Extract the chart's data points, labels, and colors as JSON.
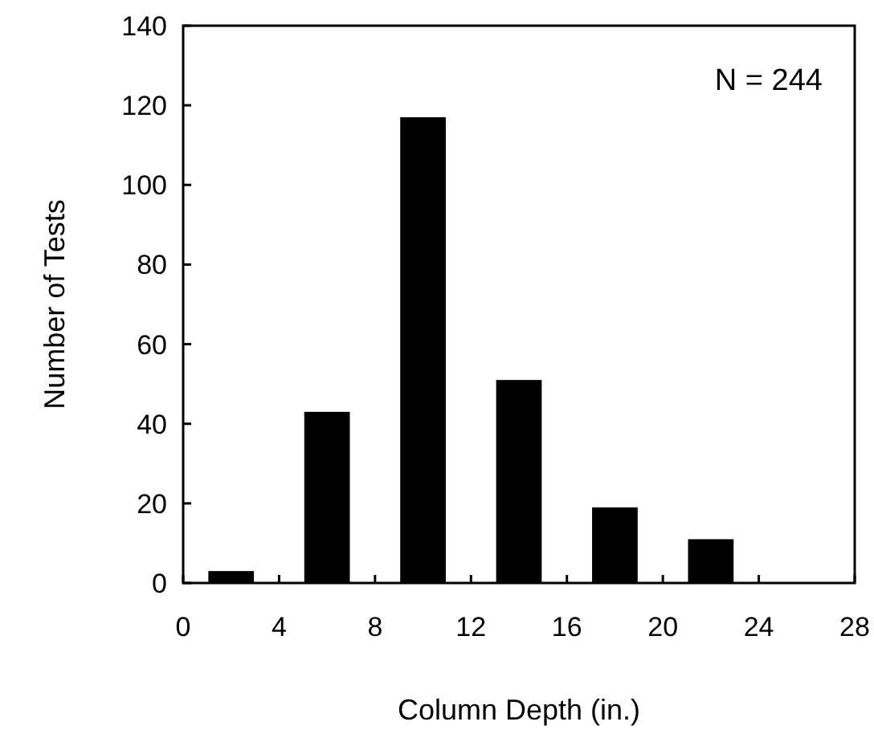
{
  "chart_data": {
    "type": "bar",
    "xlabel": "Column Depth (in.)",
    "ylabel": "Number of Tests",
    "x": [
      2,
      6,
      10,
      14,
      18,
      22
    ],
    "values": [
      3,
      43,
      117,
      51,
      19,
      11
    ],
    "color": "#000000",
    "xlim": [
      0,
      28
    ],
    "xticks": [
      0,
      4,
      8,
      12,
      16,
      20,
      24,
      28
    ],
    "ylim": [
      0,
      140
    ],
    "yticks": [
      0,
      20,
      40,
      60,
      80,
      100,
      120,
      140
    ],
    "grid": false,
    "annotations": [
      "N = 244"
    ]
  }
}
